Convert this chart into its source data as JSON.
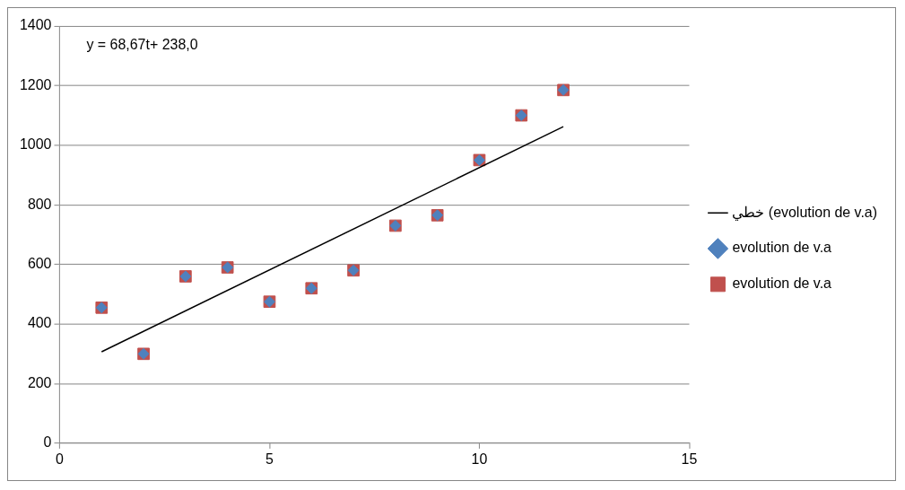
{
  "chart_data": {
    "type": "scatter",
    "x": [
      1,
      2,
      3,
      4,
      5,
      6,
      7,
      8,
      9,
      10,
      11,
      12
    ],
    "series": [
      {
        "name": "evolution de v.a",
        "type": "scatter",
        "marker": "square",
        "color": "#c0504d",
        "values": [
          455,
          300,
          560,
          590,
          475,
          520,
          580,
          730,
          765,
          950,
          1100,
          1185
        ]
      },
      {
        "name": "evolution de v.a",
        "type": "scatter",
        "marker": "diamond",
        "color": "#4f81bd",
        "values": [
          455,
          300,
          560,
          590,
          475,
          520,
          580,
          730,
          765,
          950,
          1100,
          1185
        ]
      },
      {
        "name": "خطي (evolution de v.a)",
        "type": "line",
        "marker": "none",
        "color": "#000000",
        "x": [
          1,
          12
        ],
        "values": [
          307,
          1062
        ]
      }
    ],
    "xlim": [
      0,
      15
    ],
    "xticks": [
      0,
      5,
      10,
      15
    ],
    "ylim": [
      0,
      1400
    ],
    "yticks": [
      0,
      200,
      400,
      600,
      800,
      1000,
      1200,
      1400
    ],
    "grid": "y",
    "legend": "right",
    "annotations": [
      "y = 68,67t+ 238,0"
    ]
  }
}
